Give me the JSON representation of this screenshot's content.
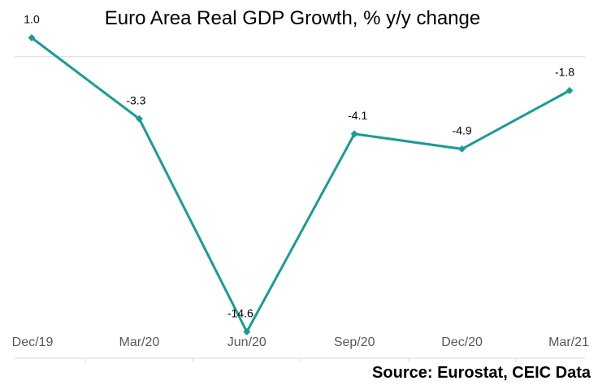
{
  "chart_data": {
    "type": "line",
    "title": "Euro Area Real GDP Growth, % y/y change",
    "categories": [
      "Dec/19",
      "Mar/20",
      "Jun/20",
      "Sep/20",
      "Dec/20",
      "Mar/21"
    ],
    "series": [
      {
        "name": "Real GDP Growth",
        "values": [
          1.0,
          -3.3,
          -14.6,
          -4.1,
          -4.9,
          -1.8
        ]
      }
    ],
    "data_labels": [
      "1.0",
      "-3.3",
      "-14.6",
      "-4.1",
      "-4.9",
      "-1.8"
    ],
    "xlabel": "",
    "ylabel": "",
    "ylim": [
      -16,
      2
    ],
    "grid": false,
    "legend": "none",
    "colors": {
      "line": "#1a9c96"
    },
    "source": "Source: Eurostat, CEIC Data"
  }
}
